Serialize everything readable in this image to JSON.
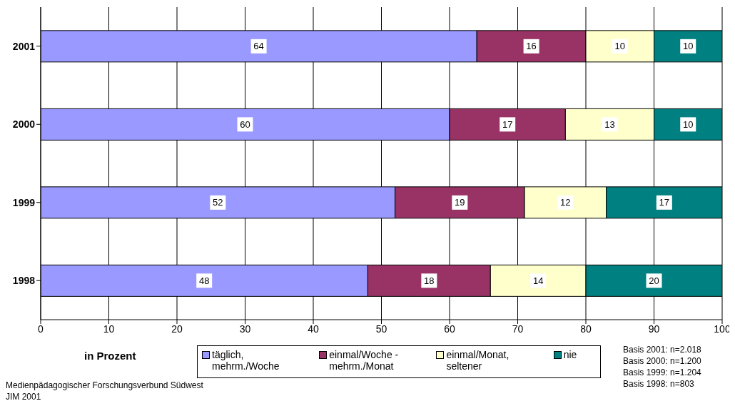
{
  "chart_data": {
    "type": "bar",
    "orientation": "horizontal",
    "stacked": true,
    "categories": [
      "2001",
      "2000",
      "1999",
      "1998"
    ],
    "series": [
      {
        "name": "täglich, mehrm./Woche",
        "color": "#9999ff",
        "values": [
          64,
          60,
          52,
          48
        ]
      },
      {
        "name": "einmal/Woche - mehrm./Monat",
        "color": "#993366",
        "values": [
          16,
          17,
          19,
          18
        ]
      },
      {
        "name": "einmal/Monat, seltener",
        "color": "#ffffcc",
        "values": [
          10,
          13,
          12,
          14
        ]
      },
      {
        "name": "nie",
        "color": "#008080",
        "values": [
          10,
          10,
          17,
          20
        ]
      }
    ],
    "xlim": [
      0,
      100
    ],
    "xticks": [
      0,
      10,
      20,
      30,
      40,
      50,
      60,
      70,
      80,
      90,
      100
    ],
    "xlabel": "in Prozent",
    "grid": "x",
    "legend": "bottom",
    "data_labels": true,
    "annotations": [
      "Basis 2001: n=2.018",
      "Basis 2000: n=1.200",
      "Basis 1999: n=1.204",
      "Basis 1998: n=803",
      "Medienpädagogischer Forschungsverbund Südwest",
      "JIM 2001"
    ]
  }
}
